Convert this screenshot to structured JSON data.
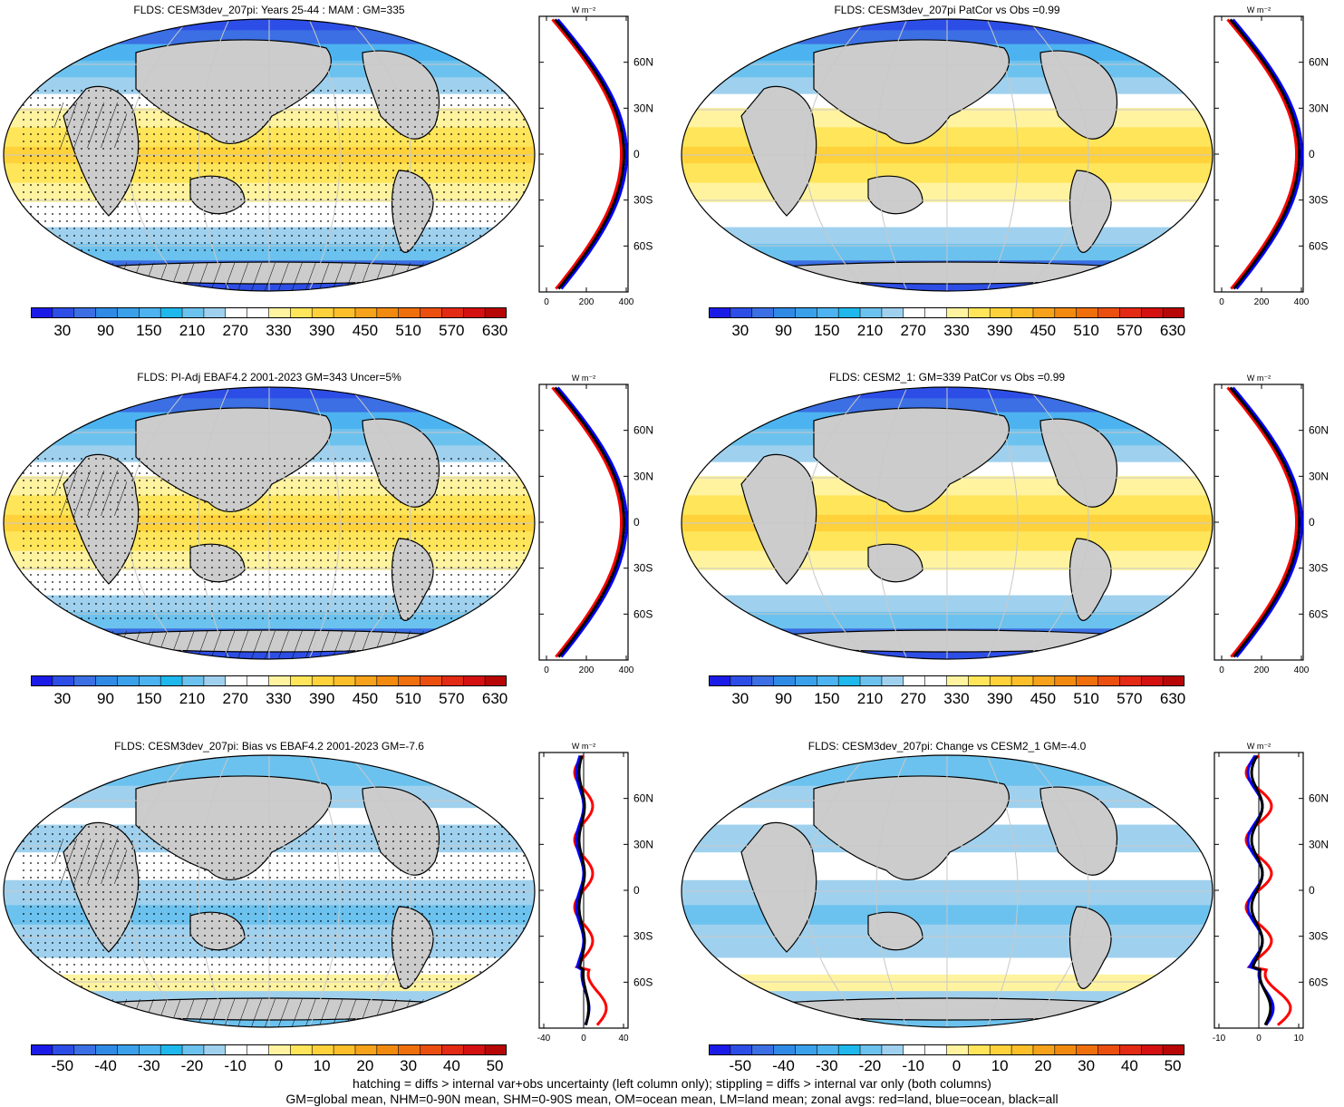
{
  "panels": [
    {
      "title": "FLDS: CESM3dev_207pi: Years 25-44 : MAM : GM=335",
      "kind": "abs",
      "hatch": true,
      "stipple": true
    },
    {
      "title": "FLDS: CESM3dev_207pi PatCor vs Obs =0.99",
      "kind": "abs",
      "hatch": false,
      "stipple": false
    },
    {
      "title": "FLDS: PI-Adj EBAF4.2 2001-2023 GM=343 Uncer=5%",
      "kind": "abs",
      "hatch": true,
      "stipple": true
    },
    {
      "title": "FLDS: CESM2_1: GM=339 PatCor vs Obs =0.99",
      "kind": "abs",
      "hatch": false,
      "stipple": false
    },
    {
      "title": "FLDS: CESM3dev_207pi: Bias vs EBAF4.2 2001-2023 GM=-7.6",
      "kind": "diff",
      "hatch": true,
      "stipple": true
    },
    {
      "title": "FLDS: CESM3dev_207pi: Change vs CESM2_1 GM=-4.0",
      "kind": "diff",
      "hatch": false,
      "stipple": false
    }
  ],
  "zonal": {
    "units": "W m⁻²",
    "lat_labels": [
      "60N",
      "30N",
      "0",
      "30S",
      "60S"
    ],
    "abs_x_ticks": [
      "0",
      "200",
      "400"
    ],
    "bias_x_ticks": [
      "-40",
      "0",
      "40"
    ],
    "change_x_ticks": [
      "-10",
      "0",
      "10"
    ]
  },
  "colorbars": {
    "abs_labels": [
      "30",
      "90",
      "150",
      "210",
      "270",
      "330",
      "390",
      "450",
      "510",
      "570",
      "630"
    ],
    "diff_labels": [
      "-50",
      "-40",
      "-30",
      "-20",
      "-10",
      "0",
      "10",
      "20",
      "30",
      "40",
      "50"
    ],
    "colors": [
      "#1b1be8",
      "#2d4ee6",
      "#3b6fe3",
      "#2f8ae6",
      "#3aa0ea",
      "#4cb3f0",
      "#1fb8ec",
      "#6cc2ee",
      "#9fd1ee",
      "#ffffff",
      "#ffffff",
      "#fff3a0",
      "#ffe55a",
      "#ffd23b",
      "#fcbf2a",
      "#f7a21b",
      "#f28a10",
      "#ee6f0c",
      "#ea4f10",
      "#e22a14",
      "#d41010",
      "#b70606"
    ]
  },
  "footer": {
    "line1": "hatching = diffs > internal var+obs uncertainty (left column only); stippling = diffs > internal var only (both columns)",
    "line2": "GM=global mean, NHM=0-90N mean, SHM=0-90S mean, OM=ocean mean, LM=land mean; zonal avgs: red=land, blue=ocean, black=all"
  }
}
